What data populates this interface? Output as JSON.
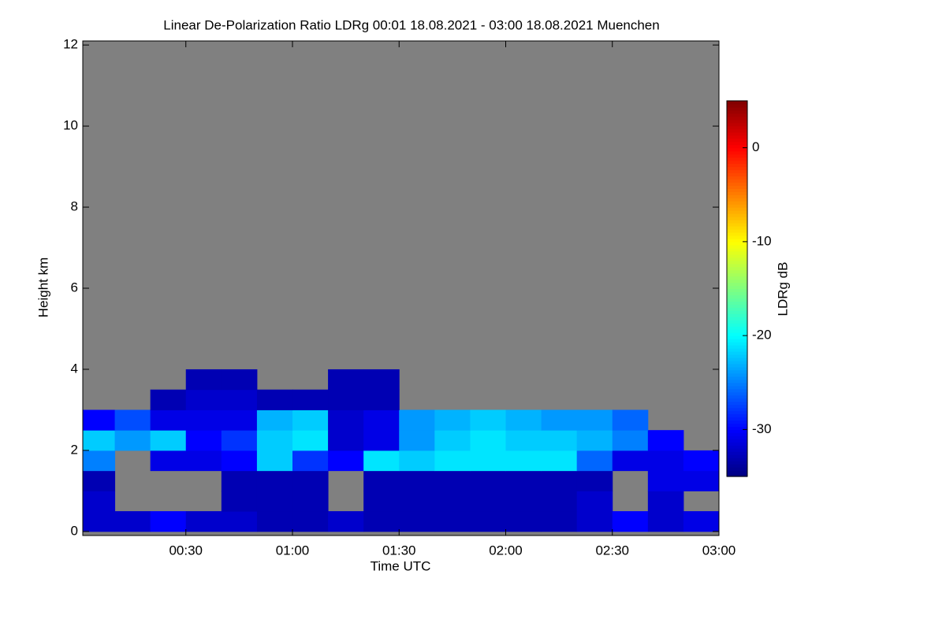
{
  "chart_data": {
    "type": "heatmap",
    "title": "Linear De-Polarization Ratio LDRg   00:01 18.08.2021 - 03:00 18.08.2021 Muenchen",
    "x_label": "Time UTC",
    "y_label": "Height km",
    "colorbar_label": "LDRg dB",
    "x_bins": [
      0,
      10,
      20,
      30,
      40,
      50,
      60,
      70,
      80,
      90,
      100,
      110,
      120,
      130,
      140,
      150,
      160,
      170,
      180
    ],
    "y_bins": [
      0,
      0.5,
      1,
      1.5,
      2,
      2.5,
      3,
      3.5,
      4
    ],
    "values": [
      [
        -32,
        -32,
        -30,
        -32,
        -32,
        -33,
        -33,
        -32,
        -33,
        -33,
        -33,
        -33,
        -33,
        -33,
        -32,
        -30,
        -32,
        -31
      ],
      [
        -32,
        null,
        null,
        null,
        -33,
        -33,
        -33,
        null,
        -33,
        -33,
        -33,
        -33,
        -33,
        -33,
        -32,
        null,
        -32,
        null
      ],
      [
        -33,
        null,
        null,
        null,
        -33,
        -33,
        -33,
        null,
        -33,
        -33,
        -33,
        -33,
        -33,
        -33,
        -33,
        null,
        -31,
        -31
      ],
      [
        -25,
        null,
        -31,
        -31,
        -30,
        -22,
        -28,
        -30,
        -21,
        -22,
        -21,
        -21,
        -21,
        -21,
        -26,
        -31,
        -31,
        -30
      ],
      [
        -22,
        -24,
        -22,
        -30,
        -28,
        -22,
        -21,
        -32,
        -31,
        -24,
        -22,
        -21,
        -22,
        -22,
        -23,
        -25,
        -30,
        null
      ],
      [
        -30,
        -27,
        -31,
        -31,
        -31,
        -23,
        -22,
        -32,
        -31,
        -24,
        -23,
        -22,
        -23,
        -24,
        -24,
        -26,
        null,
        null
      ],
      [
        null,
        null,
        -33,
        -32,
        -32,
        -33,
        -33,
        -33,
        -33,
        null,
        null,
        null,
        null,
        null,
        null,
        null,
        null,
        null
      ],
      [
        null,
        null,
        null,
        -33,
        -33,
        null,
        null,
        -33,
        -33,
        null,
        null,
        null,
        null,
        null,
        null,
        null,
        null,
        null
      ]
    ],
    "xlim": [
      1,
      180
    ],
    "xticks": [
      {
        "value": 30,
        "label": "00:30"
      },
      {
        "value": 60,
        "label": "01:00"
      },
      {
        "value": 90,
        "label": "01:30"
      },
      {
        "value": 120,
        "label": "02:00"
      },
      {
        "value": 150,
        "label": "02:30"
      },
      {
        "value": 180,
        "label": "03:00"
      }
    ],
    "ylim": [
      -0.1,
      12.1
    ],
    "yticks": [
      0,
      2,
      4,
      6,
      8,
      10,
      12
    ],
    "clim": [
      -35,
      5
    ],
    "cticks": [
      0,
      -10,
      -20,
      -30
    ],
    "colormap": "jet",
    "missing_color": "#808080"
  }
}
